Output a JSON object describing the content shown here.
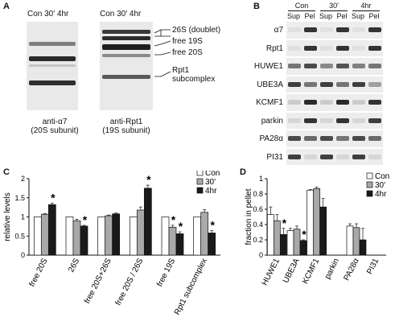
{
  "panels": {
    "a": {
      "letter": "A",
      "gel1_lanes": "Con 30' 4hr",
      "gel2_lanes": "Con 30' 4hr",
      "gel1_caption": [
        "anti-α7",
        "(20S subunit)"
      ],
      "gel2_caption": [
        "anti-Rpt1",
        "(19S subunit)"
      ],
      "band_labels": [
        "26S (doublet)",
        "free 19S",
        "free 20S",
        "Rpt1",
        "subcomplex"
      ]
    },
    "b": {
      "letter": "B",
      "groups": [
        "Con",
        "30'",
        "4hr"
      ],
      "subheaders": [
        "Sup",
        "Pel",
        "Sup",
        "Pel",
        "Sup",
        "Pel"
      ],
      "rows": [
        "α7",
        "Rpt1",
        "HUWE1",
        "UBE3A",
        "KCMF1",
        "parkin",
        "PA28α",
        "PI31"
      ]
    },
    "c": {
      "letter": "C"
    },
    "d": {
      "letter": "D"
    }
  },
  "colors": {
    "con": "#ffffff",
    "m30": "#a9a9a9",
    "h4": "#1a1a1a"
  },
  "chart_data": [
    {
      "type": "bar",
      "ylabel": "relative levels",
      "ylim": [
        0,
        2
      ],
      "yticks": [
        "0",
        "0.5",
        "1",
        "1.5",
        "2"
      ],
      "categories": [
        "free 20S",
        "26S",
        "free 20S+26S",
        "free 20S / 26S",
        "free 19S",
        "Rpt1 subcomplex"
      ],
      "series": [
        {
          "name": "Con",
          "values": [
            1.0,
            1.0,
            1.0,
            1.0,
            1.0,
            1.0
          ],
          "errors": [
            0,
            0,
            0,
            0,
            0,
            0
          ]
        },
        {
          "name": "30'",
          "values": [
            1.07,
            0.9,
            1.03,
            1.18,
            0.73,
            1.12
          ],
          "errors": [
            0.02,
            0.04,
            0.02,
            0.08,
            0.05,
            0.07
          ]
        },
        {
          "name": "4hr",
          "values": [
            1.32,
            0.76,
            1.08,
            1.75,
            0.56,
            0.58
          ],
          "errors": [
            0.04,
            0.02,
            0.02,
            0.08,
            0.05,
            0.06
          ]
        }
      ],
      "stars": [
        [
          2
        ],
        [
          2
        ],
        [],
        [
          2
        ],
        [
          1,
          2
        ],
        [
          2
        ]
      ],
      "star_symbol": "*",
      "legend": "top-right"
    },
    {
      "type": "bar",
      "ylabel": "fraction in pellet",
      "ylim": [
        0,
        1
      ],
      "yticks": [
        "0",
        "0.2",
        "0.4",
        "0.6",
        "0.8",
        "1"
      ],
      "categories": [
        "HUWE1",
        "UBE3A",
        "KCMF1",
        "parkin",
        "PA28α",
        "PI31"
      ],
      "series": [
        {
          "name": "Con",
          "values": [
            0.53,
            0.32,
            0.85,
            0,
            0.38,
            0
          ],
          "errors": [
            0.1,
            0.03,
            0.01,
            0,
            0.03,
            0
          ]
        },
        {
          "name": "30'",
          "values": [
            0.45,
            0.34,
            0.87,
            0,
            0.36,
            0
          ],
          "errors": [
            0.08,
            0.04,
            0.02,
            0,
            0.05,
            0
          ]
        },
        {
          "name": "4hr",
          "values": [
            0.27,
            0.19,
            0.63,
            0,
            0.2,
            0
          ],
          "errors": [
            0.08,
            0.01,
            0.11,
            0,
            0.15,
            0
          ]
        }
      ],
      "stars": [
        [
          2
        ],
        [
          2
        ],
        [],
        [],
        [],
        []
      ],
      "star_symbol": "*",
      "legend": "top-right"
    }
  ]
}
